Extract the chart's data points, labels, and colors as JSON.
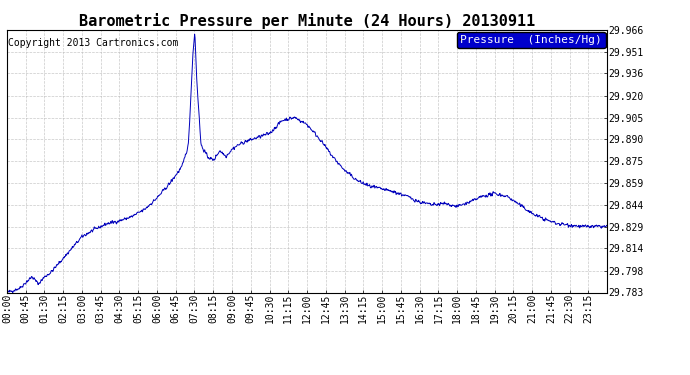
{
  "title": "Barometric Pressure per Minute (24 Hours) 20130911",
  "copyright": "Copyright 2013 Cartronics.com",
  "legend_label": "Pressure  (Inches/Hg)",
  "line_color": "#0000bb",
  "legend_bg": "#0000cc",
  "legend_text_color": "#ffffff",
  "background_color": "#ffffff",
  "border_color": "#000000",
  "grid_color": "#bbbbbb",
  "yticks": [
    29.783,
    29.798,
    29.814,
    29.829,
    29.844,
    29.859,
    29.875,
    29.89,
    29.905,
    29.92,
    29.936,
    29.951,
    29.966
  ],
  "xtick_labels": [
    "00:00",
    "00:45",
    "01:30",
    "02:15",
    "03:00",
    "03:45",
    "04:30",
    "05:15",
    "06:00",
    "06:45",
    "07:30",
    "08:15",
    "09:00",
    "09:45",
    "10:30",
    "11:15",
    "12:00",
    "12:45",
    "13:30",
    "14:15",
    "15:00",
    "15:45",
    "16:30",
    "17:15",
    "18:00",
    "18:45",
    "19:30",
    "20:15",
    "21:00",
    "21:45",
    "22:30",
    "23:15"
  ],
  "ylim": [
    29.783,
    29.966
  ],
  "xlim": [
    0,
    1440
  ],
  "title_fontsize": 11,
  "copyright_fontsize": 7,
  "tick_fontsize": 7,
  "legend_fontsize": 8,
  "figsize": [
    6.9,
    3.75
  ],
  "dpi": 100
}
